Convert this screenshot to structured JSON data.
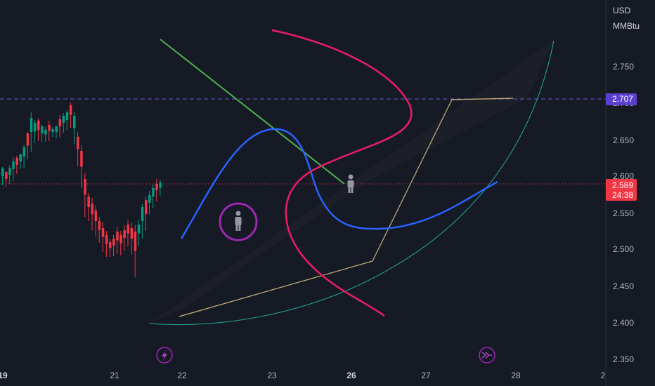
{
  "axis": {
    "currency": "USD",
    "unit": "MMBtu",
    "price_ticks": [
      "2.750",
      "2.700",
      "2.650",
      "2.600",
      "2.550",
      "2.500",
      "2.450",
      "2.400",
      "2.350"
    ],
    "time_ticks": [
      {
        "label": "19",
        "bold": true
      },
      {
        "label": "21",
        "bold": false
      },
      {
        "label": "22",
        "bold": false
      },
      {
        "label": "23",
        "bold": false
      },
      {
        "label": "26",
        "bold": true
      },
      {
        "label": "27",
        "bold": false
      },
      {
        "label": "28",
        "bold": false
      },
      {
        "label": "2",
        "bold": false
      }
    ]
  },
  "badges": {
    "alert_price": "2.707",
    "last_price": "2.589",
    "countdown": "24:38"
  },
  "icons": [
    "person-icon",
    "lightning-icon",
    "fast-forward-icon"
  ],
  "colors": {
    "background": "#161a25",
    "up_candle": "#089981",
    "down_candle": "#f23645",
    "alert_line": "#6d5bd0",
    "price_line": "#f23645",
    "blue_curve": "#2962ff",
    "pink_curve": "#e91e63",
    "green_line": "#4caf50",
    "tan_path": "#c9b37e",
    "teal_arc": "#22ab94",
    "purple_marker": "#9c27b0"
  }
}
